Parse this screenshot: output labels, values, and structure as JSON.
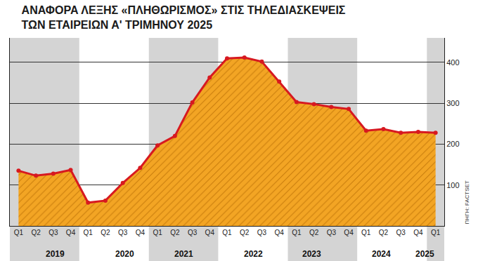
{
  "chart_data": {
    "type": "line",
    "title": "ΑΝΑΦΟΡΑ ΛΕΞΗΣ «ΠΛΗΘΩΡΙΣΜΟΣ» ΣΤΙΣ ΤΗΛΕΔΙΑΣΚΕΨΕΙΣ\nΤΩΝ ΕΤΑΙΡΕΙΩΝ Α' ΤΡΙΜΗΝΟΥ 2025",
    "source": "ΠΗΓΗ: FACTSET",
    "categories": [
      "Q1",
      "Q2",
      "Q3",
      "Q4",
      "Q1",
      "Q2",
      "Q3",
      "Q4",
      "Q1",
      "Q2",
      "Q3",
      "Q4",
      "Q1",
      "Q2",
      "Q3",
      "Q4",
      "Q1",
      "Q2",
      "Q3",
      "Q4",
      "Q1",
      "Q2",
      "Q3",
      "Q4",
      "Q1"
    ],
    "years": [
      "2019",
      "2019",
      "2019",
      "2019",
      "2020",
      "2020",
      "2020",
      "2020",
      "2021",
      "2021",
      "2021",
      "2021",
      "2022",
      "2022",
      "2022",
      "2022",
      "2023",
      "2023",
      "2023",
      "2023",
      "2024",
      "2024",
      "2024",
      "2024",
      "2025"
    ],
    "values": [
      135,
      123,
      128,
      137,
      57,
      62,
      105,
      142,
      197,
      220,
      302,
      363,
      410,
      412,
      402,
      353,
      303,
      298,
      291,
      286,
      233,
      237,
      228,
      230,
      228
    ],
    "color": "#d71920",
    "marker": "circle",
    "ylim": [
      0,
      460
    ],
    "yticks": [
      100,
      200,
      300,
      400
    ],
    "grid": true
  }
}
